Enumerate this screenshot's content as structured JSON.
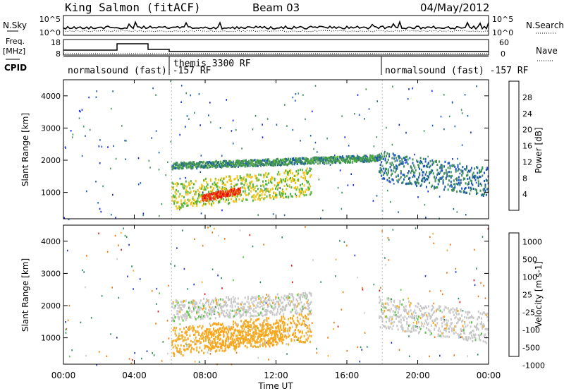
{
  "header": {
    "station": "King Salmon (fitACF)",
    "beam": "Beam 03",
    "date": "04/May/2012"
  },
  "strips": {
    "nsky_label": "N.Sky",
    "nsearch_label": "N.Search",
    "noise_ticks_left": [
      "10^5",
      "10^0"
    ],
    "noise_ticks_right": [
      "10^5",
      "10^0"
    ],
    "freq_label": "Freq.",
    "freq_unit": "[MHz]",
    "freq_ticks": [
      "18",
      "8"
    ],
    "nave_label": "Nave",
    "nave_ticks": [
      "60",
      "0"
    ],
    "cpid_label": "CPID",
    "cpid_segments": [
      {
        "label": "normalsound (fast) -157 RF"
      },
      {
        "label": "themis 3300 RF"
      },
      {
        "label": "normalsound (fast) -157 RF"
      }
    ]
  },
  "axes": {
    "ylabel": "Slant Range [km]",
    "xlabel": "Time UT",
    "y_ticks": [
      "1000",
      "2000",
      "3000",
      "4000"
    ],
    "x_ticks": [
      "00:00",
      "04:00",
      "08:00",
      "12:00",
      "16:00",
      "20:00",
      "00:00"
    ]
  },
  "power_scale": {
    "label": "Power [dB]",
    "ticks": [
      "4",
      "8",
      "12",
      "16",
      "20",
      "24",
      "28"
    ],
    "colors": [
      "#0a23e6",
      "#1c58b8",
      "#3f8f5a",
      "#56b33a",
      "#f5c20c",
      "#f48a0c",
      "#f0520c",
      "#e81010"
    ]
  },
  "velocity_scale": {
    "label": "Velocity [m s-1]",
    "ticks": [
      "1000",
      "500",
      "100",
      "25",
      "-25",
      "-100",
      "-500",
      "-1000"
    ],
    "colors": [
      "#1f2fbf",
      "#2f8a58",
      "#50c838",
      "#c8c8c8",
      "#f7a81e",
      "#f4750c",
      "#e81010"
    ]
  },
  "chart_data": [
    {
      "type": "heatmap",
      "title": "Power",
      "x_range_hours": [
        0,
        24
      ],
      "y_range_km": [
        180,
        4500
      ],
      "series": [
        {
          "t_start": 6.1,
          "t_end": 18.0,
          "range_start_km": 1750,
          "range_end_km": 1950,
          "value_db": 10
        },
        {
          "t_start": 6.1,
          "t_end": 14.0,
          "range_start_km": 500,
          "range_end_km": 1350,
          "value_db": 16
        },
        {
          "t_start": 7.8,
          "t_end": 10.0,
          "range_start_km": 750,
          "range_end_km": 950,
          "value_db": 28
        },
        {
          "t_start": 17.8,
          "t_end": 24.0,
          "range_start_km": 1400,
          "range_end_km": 2300,
          "value_db": 8
        }
      ]
    },
    {
      "type": "heatmap",
      "title": "Velocity",
      "x_range_hours": [
        0,
        24
      ],
      "y_range_km": [
        180,
        4500
      ],
      "series": [
        {
          "t_start": 6.1,
          "t_end": 14.0,
          "range_start_km": 1550,
          "range_end_km": 2200,
          "value_ms": 0
        },
        {
          "t_start": 6.1,
          "t_end": 14.0,
          "range_start_km": 450,
          "range_end_km": 1350,
          "value_ms": -50
        },
        {
          "t_start": 8.0,
          "t_end": 12.5,
          "range_start_km": 650,
          "range_end_km": 1300,
          "value_ms": -60
        },
        {
          "t_start": 17.8,
          "t_end": 24.0,
          "range_start_km": 1350,
          "range_end_km": 2300,
          "value_ms": 0
        }
      ]
    }
  ]
}
